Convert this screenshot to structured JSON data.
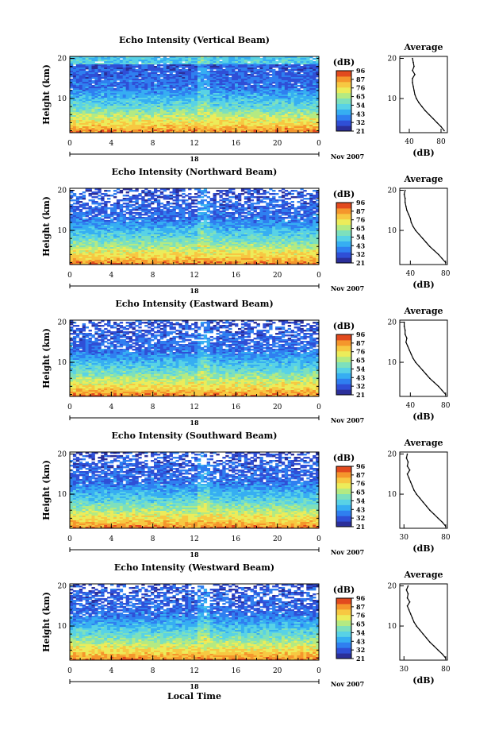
{
  "colors": {
    "colormap": [
      "#2b2f9a",
      "#2f4fd6",
      "#2f7ff0",
      "#36aef2",
      "#58d2e6",
      "#7de0bd",
      "#b4ea82",
      "#ecec5a",
      "#f7c842",
      "#f5962c",
      "#e24a1e"
    ]
  },
  "chart_data": [
    {
      "type": "heatmap",
      "title": "Echo Intensity (Vertical Beam)",
      "ylabel": "Height (km)",
      "x_ticks": [
        "0",
        "4",
        "8",
        "12",
        "16",
        "20",
        "0"
      ],
      "y_ticks": [
        "20",
        "10"
      ],
      "xlim": [
        0,
        24
      ],
      "ylim": [
        1.5,
        20.5
      ],
      "date_label": "18",
      "date_suffix": "Nov 2007",
      "colorbar": {
        "unit": "(dB)",
        "labels": [
          "96",
          "87",
          "76",
          "65",
          "54",
          "43",
          "32",
          "21"
        ]
      },
      "profile": {
        "title": "Average",
        "xlabel": "(dB)",
        "x_ticks": [
          "40",
          "80"
        ],
        "y_ticks": [
          "20",
          "10"
        ],
        "xlim": [
          28,
          88
        ],
        "ylim": [
          1.5,
          20.5
        ],
        "height": [
          2,
          3,
          4,
          5,
          6,
          7,
          8,
          9,
          10,
          11,
          12,
          13,
          14,
          15,
          16,
          17,
          18,
          19,
          20
        ],
        "value": [
          84,
          80,
          75,
          70,
          65,
          60,
          56,
          52,
          49,
          47,
          46,
          45,
          44,
          44,
          47,
          44,
          46,
          45,
          44
        ]
      }
    },
    {
      "type": "heatmap",
      "title": "Echo Intensity (Northward Beam)",
      "ylabel": "Height (km)",
      "x_ticks": [
        "0",
        "4",
        "8",
        "12",
        "16",
        "20",
        "0"
      ],
      "y_ticks": [
        "20",
        "10"
      ],
      "xlim": [
        0,
        24
      ],
      "ylim": [
        1.5,
        20.5
      ],
      "date_label": "18",
      "date_suffix": "Nov 2007",
      "colorbar": {
        "unit": "(dB)",
        "labels": [
          "96",
          "87",
          "76",
          "65",
          "54",
          "43",
          "32",
          "21"
        ]
      },
      "profile": {
        "title": "Average",
        "xlabel": "(dB)",
        "x_ticks": [
          "40",
          "80"
        ],
        "y_ticks": [
          "20",
          "10"
        ],
        "xlim": [
          28,
          82
        ],
        "ylim": [
          1.5,
          20.5
        ],
        "height": [
          2,
          3,
          4,
          5,
          6,
          7,
          8,
          9,
          10,
          11,
          12,
          13,
          14,
          15,
          16,
          17,
          18,
          19,
          20
        ],
        "value": [
          80,
          76,
          72,
          67,
          62,
          58,
          54,
          50,
          46,
          43,
          41,
          40,
          38,
          36,
          35,
          34,
          34,
          33,
          34
        ]
      }
    },
    {
      "type": "heatmap",
      "title": "Echo Intensity (Eastward Beam)",
      "ylabel": "Height (km)",
      "x_ticks": [
        "0",
        "4",
        "8",
        "12",
        "16",
        "20",
        "0"
      ],
      "y_ticks": [
        "20",
        "10"
      ],
      "xlim": [
        0,
        24
      ],
      "ylim": [
        1.5,
        20.5
      ],
      "date_label": "18",
      "date_suffix": "Nov 2007",
      "colorbar": {
        "unit": "(dB)",
        "labels": [
          "96",
          "87",
          "76",
          "65",
          "54",
          "43",
          "32",
          "21"
        ]
      },
      "profile": {
        "title": "Average",
        "xlabel": "(dB)",
        "x_ticks": [
          "40",
          "80"
        ],
        "y_ticks": [
          "20",
          "10"
        ],
        "xlim": [
          28,
          82
        ],
        "ylim": [
          1.5,
          20.5
        ],
        "height": [
          2,
          3,
          4,
          5,
          6,
          7,
          8,
          9,
          10,
          11,
          12,
          13,
          14,
          15,
          16,
          17,
          18,
          19,
          20
        ],
        "value": [
          80,
          76,
          72,
          67,
          62,
          58,
          54,
          50,
          46,
          43,
          41,
          39,
          37,
          35,
          36,
          34,
          34,
          33,
          33
        ]
      }
    },
    {
      "type": "heatmap",
      "title": "Echo Intensity (Southward Beam)",
      "ylabel": "Height (km)",
      "x_ticks": [
        "0",
        "4",
        "8",
        "12",
        "16",
        "20",
        "0"
      ],
      "y_ticks": [
        "20",
        "10"
      ],
      "xlim": [
        0,
        24
      ],
      "ylim": [
        1.5,
        20.5
      ],
      "date_label": "18",
      "date_suffix": "Nov 2007",
      "colorbar": {
        "unit": "(dB)",
        "labels": [
          "96",
          "87",
          "76",
          "65",
          "54",
          "43",
          "32",
          "21"
        ]
      },
      "profile": {
        "title": "Average",
        "xlabel": "(dB)",
        "x_ticks": [
          "30",
          "80"
        ],
        "y_ticks": [
          "20",
          "10"
        ],
        "xlim": [
          25,
          82
        ],
        "ylim": [
          1.5,
          20.5
        ],
        "height": [
          2,
          3,
          4,
          5,
          6,
          7,
          8,
          9,
          10,
          11,
          12,
          13,
          14,
          15,
          16,
          17,
          18,
          19,
          20
        ],
        "value": [
          80,
          76,
          71,
          66,
          61,
          57,
          53,
          49,
          45,
          42,
          40,
          38,
          36,
          34,
          37,
          34,
          35,
          33,
          34
        ]
      }
    },
    {
      "type": "heatmap",
      "title": "Echo Intensity (Westward Beam)",
      "ylabel": "Height (km)",
      "x_ticks": [
        "0",
        "4",
        "8",
        "12",
        "16",
        "20",
        "0"
      ],
      "y_ticks": [
        "20",
        "10"
      ],
      "xlim": [
        0,
        24
      ],
      "ylim": [
        1.5,
        20.5
      ],
      "date_label": "18",
      "date_suffix": "Nov 2007",
      "xlabel": "Local Time",
      "colorbar": {
        "unit": "(dB)",
        "labels": [
          "96",
          "87",
          "76",
          "65",
          "54",
          "43",
          "32",
          "21"
        ]
      },
      "profile": {
        "title": "Average",
        "xlabel": "(dB)",
        "x_ticks": [
          "30",
          "80"
        ],
        "y_ticks": [
          "20",
          "10"
        ],
        "xlim": [
          25,
          82
        ],
        "ylim": [
          1.5,
          20.5
        ],
        "height": [
          2,
          3,
          4,
          5,
          6,
          7,
          8,
          9,
          10,
          11,
          12,
          13,
          14,
          15,
          16,
          17,
          18,
          19,
          20
        ],
        "value": [
          80,
          76,
          71,
          66,
          61,
          57,
          53,
          49,
          45,
          42,
          40,
          38,
          36,
          34,
          37,
          34,
          35,
          33,
          35
        ]
      }
    }
  ]
}
